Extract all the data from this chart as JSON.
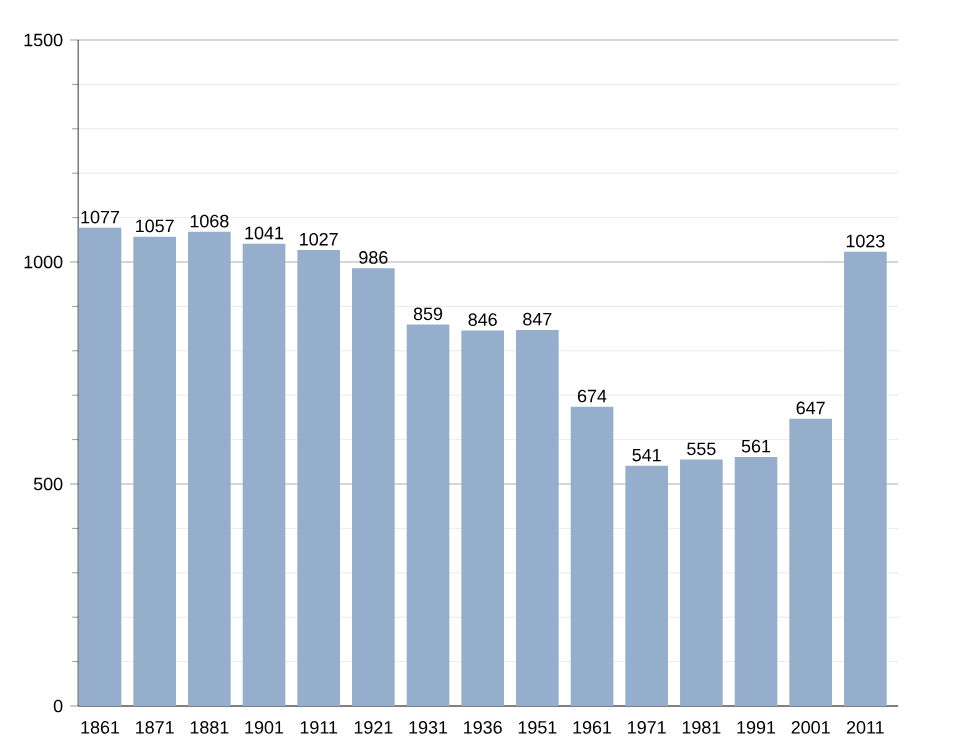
{
  "chart_data": {
    "type": "bar",
    "categories": [
      "1861",
      "1871",
      "1881",
      "1901",
      "1911",
      "1921",
      "1931",
      "1936",
      "1951",
      "1961",
      "1971",
      "1981",
      "1991",
      "2001",
      "2011"
    ],
    "values": [
      1077,
      1057,
      1068,
      1041,
      1027,
      986,
      859,
      846,
      847,
      674,
      541,
      555,
      561,
      647,
      1023
    ],
    "color": "#94aecb",
    "ylim": [
      0,
      1500
    ],
    "yticks": [
      0,
      500,
      1000,
      1500
    ],
    "grid": true,
    "data_labels": true
  }
}
